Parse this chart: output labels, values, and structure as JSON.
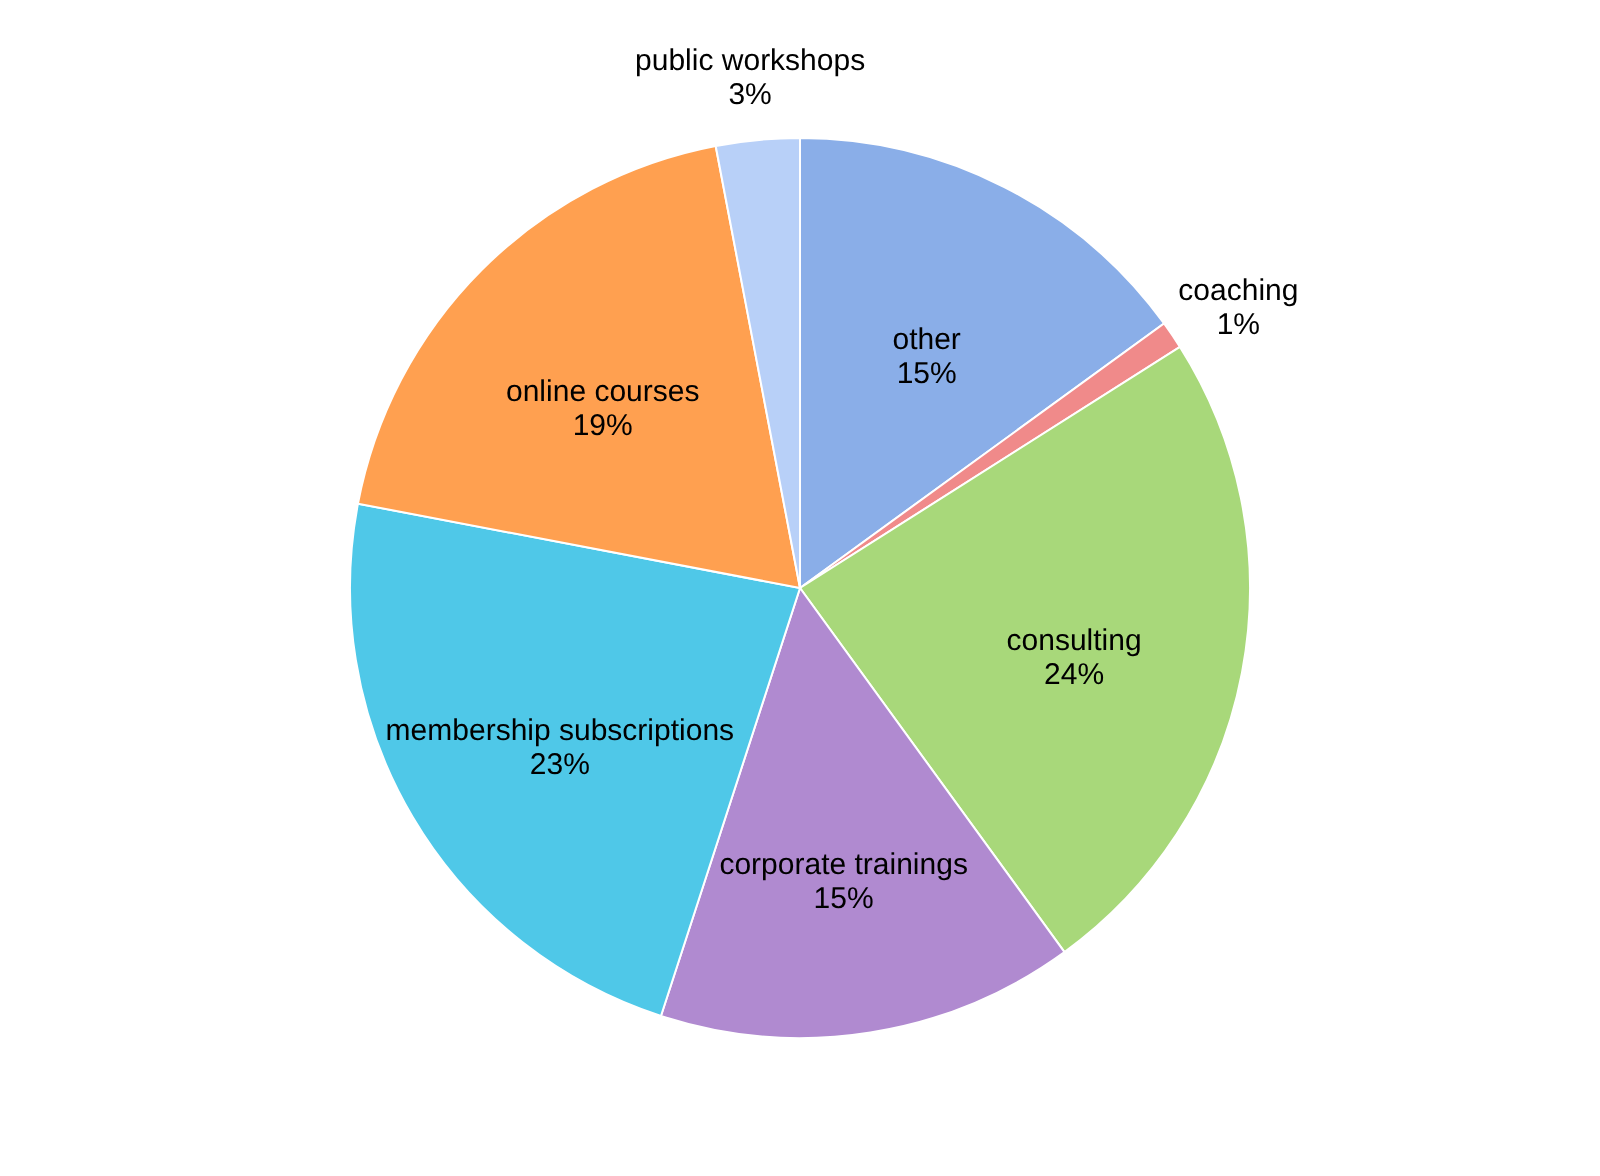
{
  "chart_data": {
    "type": "pie",
    "categories": [
      "other",
      "coaching",
      "consulting",
      "corporate trainings",
      "membership subscriptions",
      "online courses",
      "public workshops"
    ],
    "values": [
      15,
      1,
      24,
      15,
      23,
      19,
      3
    ],
    "value_labels": [
      "15%",
      "1%",
      "24%",
      "15%",
      "23%",
      "19%",
      "3%"
    ],
    "colors": [
      "#8aaee8",
      "#f08a8a",
      "#a8d87a",
      "#b08ad0",
      "#4fc8e8",
      "#ffa050",
      "#b8d0f8"
    ]
  }
}
